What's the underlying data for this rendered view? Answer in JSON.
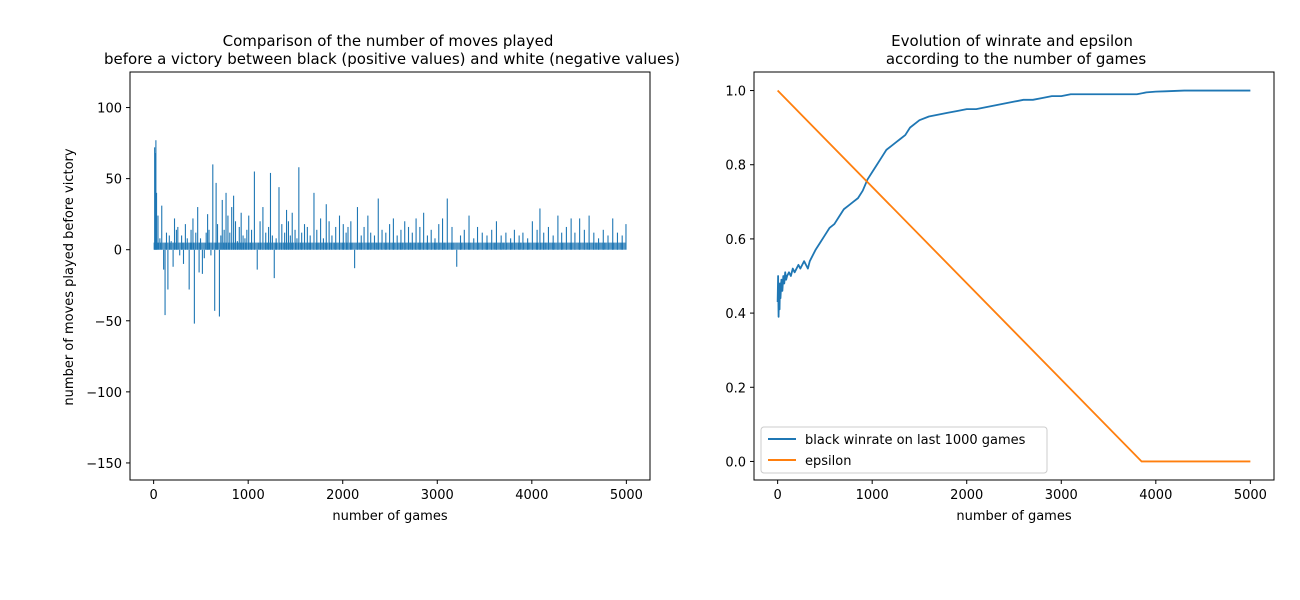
{
  "chart_data": [
    {
      "type": "bar",
      "title_line1": "Comparison of the number of moves played",
      "title_line2": "before a victory between black (positive values) and white (negative values)",
      "xlabel": "number of games",
      "ylabel": "number of moves played before victory",
      "xlim": [
        -250,
        5250
      ],
      "ylim": [
        -162,
        125
      ],
      "xticks": [
        0,
        1000,
        2000,
        3000,
        4000,
        5000
      ],
      "yticks": [
        -150,
        -100,
        -50,
        0,
        50,
        100
      ],
      "color": "#1f77b4",
      "base_positive_value": 5,
      "spikes": [
        [
          5,
          72
        ],
        [
          10,
          68
        ],
        [
          18,
          77
        ],
        [
          25,
          40
        ],
        [
          40,
          24
        ],
        [
          60,
          8
        ],
        [
          80,
          31
        ],
        [
          100,
          -14
        ],
        [
          115,
          -46
        ],
        [
          130,
          12
        ],
        [
          145,
          -28
        ],
        [
          160,
          10
        ],
        [
          180,
          6
        ],
        [
          200,
          -12
        ],
        [
          215,
          22
        ],
        [
          235,
          14
        ],
        [
          250,
          16
        ],
        [
          270,
          -4
        ],
        [
          290,
          10
        ],
        [
          310,
          -10
        ],
        [
          330,
          18
        ],
        [
          350,
          8
        ],
        [
          370,
          -28
        ],
        [
          390,
          14
        ],
        [
          410,
          22
        ],
        [
          425,
          -52
        ],
        [
          440,
          12
        ],
        [
          460,
          30
        ],
        [
          475,
          -16
        ],
        [
          490,
          8
        ],
        [
          510,
          -17
        ],
        [
          530,
          -6
        ],
        [
          550,
          12
        ],
        [
          565,
          25
        ],
        [
          580,
          14
        ],
        [
          600,
          -4
        ],
        [
          620,
          60
        ],
        [
          640,
          -43
        ],
        [
          655,
          47
        ],
        [
          670,
          18
        ],
        [
          690,
          -47
        ],
        [
          705,
          10
        ],
        [
          720,
          35
        ],
        [
          740,
          14
        ],
        [
          760,
          40
        ],
        [
          780,
          24
        ],
        [
          800,
          12
        ],
        [
          820,
          30
        ],
        [
          840,
          38
        ],
        [
          860,
          20
        ],
        [
          880,
          6
        ],
        [
          900,
          16
        ],
        [
          920,
          26
        ],
        [
          940,
          10
        ],
        [
          960,
          8
        ],
        [
          980,
          14
        ],
        [
          1000,
          24
        ],
        [
          1030,
          14
        ],
        [
          1060,
          55
        ],
        [
          1090,
          -14
        ],
        [
          1120,
          20
        ],
        [
          1150,
          30
        ],
        [
          1180,
          12
        ],
        [
          1210,
          16
        ],
        [
          1230,
          54
        ],
        [
          1250,
          10
        ],
        [
          1270,
          -20
        ],
        [
          1290,
          8
        ],
        [
          1320,
          44
        ],
        [
          1350,
          18
        ],
        [
          1380,
          12
        ],
        [
          1400,
          28
        ],
        [
          1420,
          20
        ],
        [
          1440,
          10
        ],
        [
          1460,
          26
        ],
        [
          1490,
          14
        ],
        [
          1510,
          8
        ],
        [
          1530,
          58
        ],
        [
          1560,
          12
        ],
        [
          1590,
          18
        ],
        [
          1620,
          16
        ],
        [
          1650,
          10
        ],
        [
          1690,
          40
        ],
        [
          1720,
          14
        ],
        [
          1760,
          22
        ],
        [
          1790,
          8
        ],
        [
          1820,
          32
        ],
        [
          1850,
          20
        ],
        [
          1880,
          10
        ],
        [
          1920,
          16
        ],
        [
          1960,
          24
        ],
        [
          2000,
          18
        ],
        [
          2030,
          12
        ],
        [
          2050,
          16
        ],
        [
          2080,
          20
        ],
        [
          2120,
          -13
        ],
        [
          2150,
          30
        ],
        [
          2190,
          10
        ],
        [
          2220,
          16
        ],
        [
          2260,
          24
        ],
        [
          2290,
          12
        ],
        [
          2330,
          10
        ],
        [
          2370,
          36
        ],
        [
          2410,
          14
        ],
        [
          2450,
          12
        ],
        [
          2490,
          18
        ],
        [
          2530,
          22
        ],
        [
          2570,
          10
        ],
        [
          2610,
          14
        ],
        [
          2650,
          20
        ],
        [
          2690,
          16
        ],
        [
          2730,
          12
        ],
        [
          2770,
          22
        ],
        [
          2810,
          16
        ],
        [
          2850,
          26
        ],
        [
          2890,
          10
        ],
        [
          2930,
          14
        ],
        [
          2970,
          8
        ],
        [
          3010,
          18
        ],
        [
          3050,
          22
        ],
        [
          3100,
          36
        ],
        [
          3150,
          16
        ],
        [
          3200,
          -12
        ],
        [
          3240,
          10
        ],
        [
          3280,
          14
        ],
        [
          3330,
          24
        ],
        [
          3380,
          8
        ],
        [
          3420,
          16
        ],
        [
          3470,
          12
        ],
        [
          3520,
          10
        ],
        [
          3570,
          14
        ],
        [
          3620,
          20
        ],
        [
          3670,
          10
        ],
        [
          3720,
          12
        ],
        [
          3770,
          8
        ],
        [
          3810,
          14
        ],
        [
          3860,
          10
        ],
        [
          3900,
          12
        ],
        [
          3950,
          8
        ],
        [
          4000,
          20
        ],
        [
          4050,
          14
        ],
        [
          4080,
          29
        ],
        [
          4120,
          12
        ],
        [
          4170,
          16
        ],
        [
          4220,
          10
        ],
        [
          4270,
          24
        ],
        [
          4310,
          12
        ],
        [
          4360,
          16
        ],
        [
          4410,
          22
        ],
        [
          4450,
          12
        ],
        [
          4500,
          22
        ],
        [
          4550,
          14
        ],
        [
          4600,
          24
        ],
        [
          4650,
          12
        ],
        [
          4700,
          8
        ],
        [
          4750,
          14
        ],
        [
          4800,
          10
        ],
        [
          4850,
          22
        ],
        [
          4900,
          12
        ],
        [
          4950,
          10
        ],
        [
          4990,
          18
        ]
      ]
    },
    {
      "type": "line",
      "title_line1": "Evolution of winrate and epsilon",
      "title_line2": "according to the number of games",
      "xlabel": "number of games",
      "xlim": [
        -250,
        5250
      ],
      "ylim": [
        -0.05,
        1.05
      ],
      "xticks": [
        0,
        1000,
        2000,
        3000,
        4000,
        5000
      ],
      "yticks": [
        0.0,
        0.2,
        0.4,
        0.6,
        0.8,
        1.0
      ],
      "legend_position": "lower-left",
      "series": [
        {
          "name": "black winrate on last 1000 games",
          "color": "#1f77b4",
          "x": [
            0,
            5,
            10,
            15,
            20,
            25,
            30,
            40,
            50,
            60,
            70,
            80,
            90,
            100,
            120,
            140,
            160,
            180,
            200,
            220,
            240,
            260,
            280,
            300,
            320,
            340,
            360,
            400,
            450,
            500,
            550,
            600,
            650,
            700,
            750,
            800,
            850,
            900,
            950,
            1000,
            1050,
            1100,
            1150,
            1200,
            1250,
            1300,
            1350,
            1400,
            1500,
            1600,
            1700,
            1800,
            1900,
            2000,
            2100,
            2200,
            2300,
            2400,
            2500,
            2600,
            2700,
            2800,
            2900,
            3000,
            3100,
            3200,
            3300,
            3400,
            3500,
            3600,
            3700,
            3800,
            3900,
            4000,
            4100,
            4200,
            4300,
            4400,
            4500,
            4600,
            4700,
            4800,
            4900,
            5000
          ],
          "y": [
            0.43,
            0.5,
            0.39,
            0.47,
            0.41,
            0.48,
            0.44,
            0.49,
            0.46,
            0.5,
            0.48,
            0.51,
            0.49,
            0.5,
            0.51,
            0.5,
            0.52,
            0.51,
            0.52,
            0.53,
            0.52,
            0.53,
            0.54,
            0.53,
            0.52,
            0.54,
            0.55,
            0.57,
            0.59,
            0.61,
            0.63,
            0.64,
            0.66,
            0.68,
            0.69,
            0.7,
            0.71,
            0.73,
            0.76,
            0.78,
            0.8,
            0.82,
            0.84,
            0.85,
            0.86,
            0.87,
            0.88,
            0.9,
            0.92,
            0.93,
            0.935,
            0.94,
            0.945,
            0.95,
            0.95,
            0.955,
            0.96,
            0.965,
            0.97,
            0.975,
            0.975,
            0.98,
            0.985,
            0.985,
            0.99,
            0.99,
            0.99,
            0.99,
            0.99,
            0.99,
            0.99,
            0.99,
            0.995,
            0.997,
            0.998,
            0.999,
            1.0,
            1.0,
            1.0,
            1.0,
            1.0,
            1.0,
            1.0,
            1.0
          ]
        },
        {
          "name": "epsilon",
          "color": "#ff7f0e",
          "x": [
            0,
            3850,
            5000
          ],
          "y": [
            1.0,
            0.0,
            0.0
          ]
        }
      ]
    }
  ]
}
